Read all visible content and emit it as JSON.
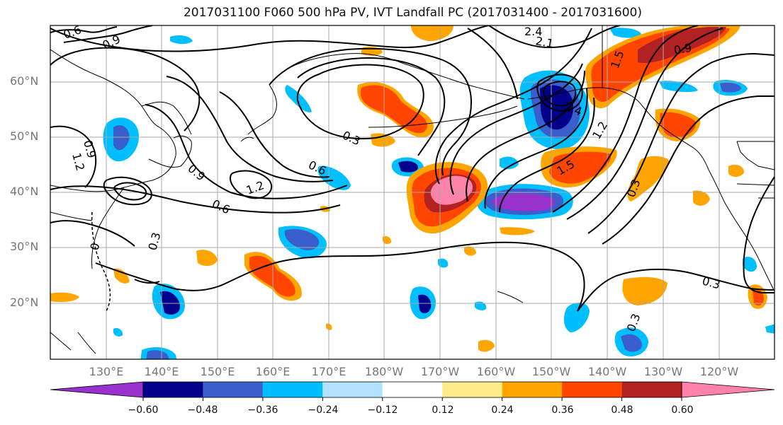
{
  "title": "2017031100 F060 500 hPa PV, IVT Landfall PC (2017031400 - 2017031600)",
  "latitude_labels": [
    "60°N",
    "50°N",
    "40°N",
    "30°N",
    "20°N"
  ],
  "longitude_labels": [
    "130°E",
    "140°E",
    "150°E",
    "160°E",
    "170°E",
    "180°W",
    "170°W",
    "160°W",
    "150°W",
    "140°W",
    "130°W",
    "120°W"
  ],
  "colorbar": {
    "tick_labels": [
      "−0.60",
      "−0.48",
      "−0.36",
      "−0.24",
      "−0.12",
      "0.12",
      "0.24",
      "0.36",
      "0.48",
      "0.60"
    ],
    "colors": [
      "#9932cc",
      "#00008b",
      "#3a5fcd",
      "#00bfff",
      "#b2e2ff",
      "#ffffff",
      "#ffec8b",
      "#ffa500",
      "#ff4500",
      "#b22222",
      "#ff82ab"
    ]
  },
  "contour_labels": [
    "0.6",
    "0.9",
    "2.4",
    "2.1",
    "1.5",
    "0.9",
    "2.4",
    "0.3",
    "0.6",
    "1.2",
    "0.9",
    "1.2",
    "0.9",
    "0.6",
    "0.3",
    "0",
    "0.3",
    "1.5",
    "1.2",
    "0.3",
    "0.3"
  ]
}
